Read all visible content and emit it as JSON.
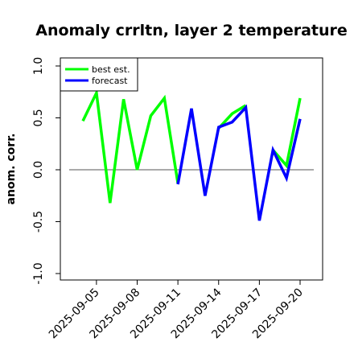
{
  "chart_data": {
    "type": "line",
    "title": "Anomaly crrltn, layer 2 temperature",
    "xlabel": "",
    "ylabel": "anom. corr.",
    "ylim": [
      -1.0,
      1.0
    ],
    "yticks": [
      -1.0,
      -0.5,
      0.0,
      0.5,
      1.0
    ],
    "ytick_labels": [
      "-1.0",
      "-0.5",
      "0.0",
      "0.5",
      "1.0"
    ],
    "x_dates": [
      "2025-09-04",
      "2025-09-05",
      "2025-09-06",
      "2025-09-07",
      "2025-09-08",
      "2025-09-09",
      "2025-09-10",
      "2025-09-11",
      "2025-09-12",
      "2025-09-13",
      "2025-09-14",
      "2025-09-15",
      "2025-09-16",
      "2025-09-17",
      "2025-09-18",
      "2025-09-19",
      "2025-09-20"
    ],
    "xticks": [
      "2025-09-05",
      "2025-09-08",
      "2025-09-11",
      "2025-09-14",
      "2025-09-17",
      "2025-09-20"
    ],
    "xtick_colors": [
      "#000000",
      "#000000",
      "#228B22",
      "#000000",
      "#000000",
      "#000000"
    ],
    "reference_line": 0.0,
    "legend_position": "top-left",
    "series": [
      {
        "name": "best est.",
        "color": "#00ff00",
        "values": [
          0.47,
          0.74,
          -0.32,
          0.68,
          0.0,
          0.52,
          0.69,
          -0.13,
          null,
          null,
          0.4,
          0.54,
          0.62,
          null,
          0.19,
          0.04,
          0.69
        ]
      },
      {
        "name": "forecast",
        "color": "#0000ff",
        "values": [
          null,
          null,
          null,
          null,
          null,
          null,
          null,
          -0.14,
          0.59,
          -0.25,
          0.41,
          0.46,
          0.6,
          -0.49,
          0.19,
          -0.08,
          0.49
        ]
      }
    ]
  }
}
